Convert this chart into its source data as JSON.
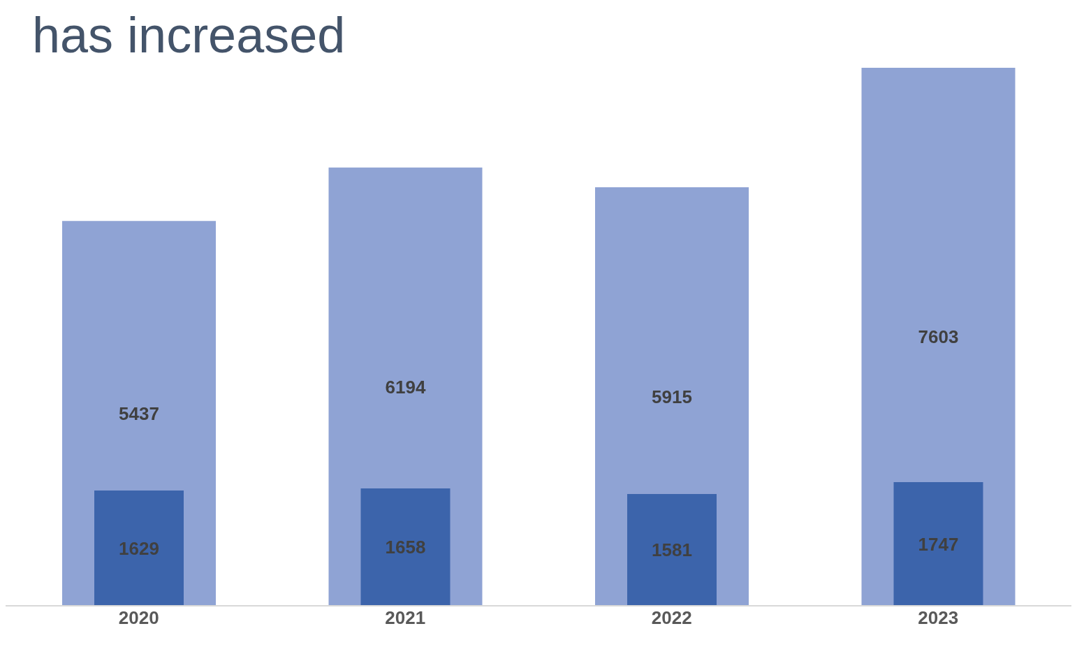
{
  "chart_data": {
    "type": "bar",
    "title": "has increased",
    "categories": [
      "2020",
      "2021",
      "2022",
      "2023"
    ],
    "series": [
      {
        "color": "#8fa3d4",
        "values": [
          5437,
          6194,
          5915,
          7603
        ]
      },
      {
        "color": "#3c64ab",
        "values": [
          1629,
          1658,
          1581,
          1747
        ]
      }
    ],
    "data_labels": true
  }
}
